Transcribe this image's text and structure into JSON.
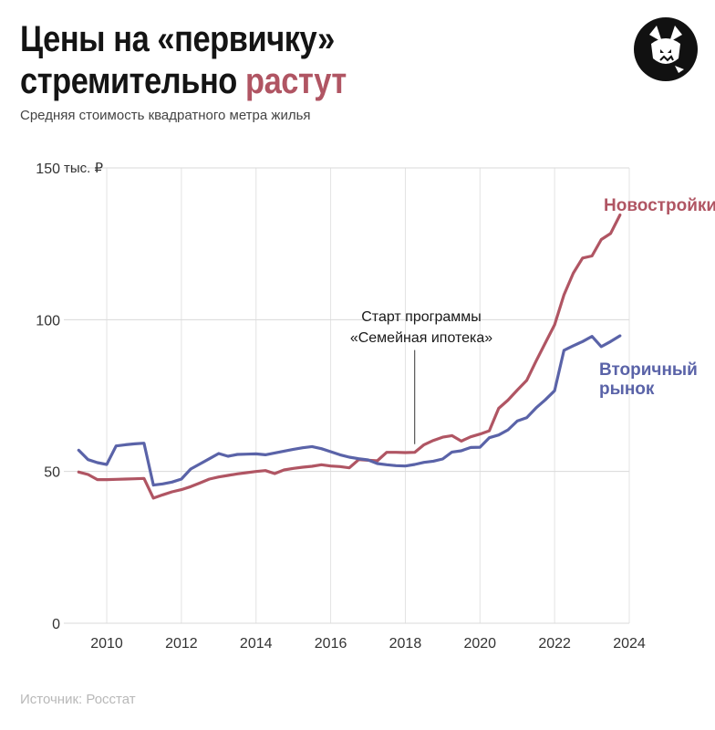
{
  "header": {
    "title_line1": "Цены на «первичку»",
    "title_line2_prefix": "стремительно ",
    "title_line2_accent": "растут",
    "subtitle": "Средняя стоимость квадратного метра жилья"
  },
  "footer": {
    "source": "Источник: Росстат"
  },
  "logo": {
    "icon": "fox-head-icon"
  },
  "colors": {
    "new": "#b05563",
    "secondary": "#5a63a8",
    "accent": "#b05563",
    "grid": "#d9d9d9"
  },
  "chart_data": {
    "type": "line",
    "title": "",
    "xlabel": "",
    "ylabel": "",
    "y_unit": "тыс. ₽",
    "xlim": [
      2008.9,
      2024.0
    ],
    "ylim": [
      0,
      150
    ],
    "y_ticks": [
      "0",
      "50",
      "100",
      "150"
    ],
    "x_ticks": [
      "2010",
      "2012",
      "2014",
      "2016",
      "2018",
      "2020",
      "2022",
      "2024"
    ],
    "grid": "horizontal",
    "legend": "inline labels at line ends",
    "series": [
      {
        "name": "Новостройки",
        "color": "#b05563",
        "points": [
          [
            2009.25,
            49.8
          ],
          [
            2009.5,
            49.0
          ],
          [
            2009.75,
            47.3
          ],
          [
            2010.0,
            47.3
          ],
          [
            2010.25,
            47.4
          ],
          [
            2010.5,
            47.5
          ],
          [
            2010.75,
            47.6
          ],
          [
            2011.0,
            47.7
          ],
          [
            2011.25,
            41.2
          ],
          [
            2011.5,
            42.3
          ],
          [
            2011.75,
            43.3
          ],
          [
            2012.0,
            44.0
          ],
          [
            2012.25,
            45.0
          ],
          [
            2012.5,
            46.2
          ],
          [
            2012.75,
            47.5
          ],
          [
            2013.0,
            48.2
          ],
          [
            2013.25,
            48.7
          ],
          [
            2013.5,
            49.2
          ],
          [
            2013.75,
            49.6
          ],
          [
            2014.0,
            50.0
          ],
          [
            2014.25,
            50.3
          ],
          [
            2014.5,
            49.3
          ],
          [
            2014.75,
            50.5
          ],
          [
            2015.0,
            51.0
          ],
          [
            2015.25,
            51.4
          ],
          [
            2015.5,
            51.7
          ],
          [
            2015.75,
            52.2
          ],
          [
            2016.0,
            51.8
          ],
          [
            2016.25,
            51.6
          ],
          [
            2016.5,
            51.2
          ],
          [
            2016.75,
            53.9
          ],
          [
            2017.0,
            53.7
          ],
          [
            2017.25,
            53.5
          ],
          [
            2017.5,
            56.3
          ],
          [
            2017.75,
            56.3
          ],
          [
            2018.0,
            56.2
          ],
          [
            2018.25,
            56.3
          ],
          [
            2018.5,
            58.8
          ],
          [
            2018.75,
            60.2
          ],
          [
            2019.0,
            61.3
          ],
          [
            2019.25,
            61.8
          ],
          [
            2019.5,
            60.0
          ],
          [
            2019.75,
            61.4
          ],
          [
            2020.0,
            62.3
          ],
          [
            2020.25,
            63.4
          ],
          [
            2020.5,
            70.8
          ],
          [
            2020.75,
            73.5
          ],
          [
            2021.0,
            76.8
          ],
          [
            2021.25,
            80.0
          ],
          [
            2021.5,
            86.3
          ],
          [
            2021.75,
            92.3
          ],
          [
            2022.0,
            98.3
          ],
          [
            2022.25,
            108.2
          ],
          [
            2022.5,
            115.3
          ],
          [
            2022.75,
            120.3
          ],
          [
            2023.0,
            121.0
          ],
          [
            2023.25,
            126.4
          ],
          [
            2023.5,
            128.4
          ],
          [
            2023.75,
            134.5
          ]
        ]
      },
      {
        "name": "Вторичный рынок",
        "color": "#5a63a8",
        "points": [
          [
            2009.25,
            57.0
          ],
          [
            2009.5,
            53.9
          ],
          [
            2009.75,
            52.9
          ],
          [
            2010.0,
            52.3
          ],
          [
            2010.25,
            58.4
          ],
          [
            2010.5,
            58.8
          ],
          [
            2010.75,
            59.1
          ],
          [
            2011.0,
            59.3
          ],
          [
            2011.25,
            45.5
          ],
          [
            2011.5,
            45.9
          ],
          [
            2011.75,
            46.5
          ],
          [
            2012.0,
            47.5
          ],
          [
            2012.25,
            50.8
          ],
          [
            2012.5,
            52.5
          ],
          [
            2012.75,
            54.2
          ],
          [
            2013.0,
            55.9
          ],
          [
            2013.25,
            55.0
          ],
          [
            2013.5,
            55.6
          ],
          [
            2013.75,
            55.7
          ],
          [
            2014.0,
            55.8
          ],
          [
            2014.25,
            55.5
          ],
          [
            2014.5,
            56.1
          ],
          [
            2014.75,
            56.7
          ],
          [
            2015.0,
            57.3
          ],
          [
            2015.25,
            57.8
          ],
          [
            2015.5,
            58.2
          ],
          [
            2015.75,
            57.5
          ],
          [
            2016.0,
            56.5
          ],
          [
            2016.25,
            55.5
          ],
          [
            2016.5,
            54.7
          ],
          [
            2016.75,
            54.2
          ],
          [
            2017.0,
            53.8
          ],
          [
            2017.25,
            52.6
          ],
          [
            2017.5,
            52.2
          ],
          [
            2017.75,
            51.9
          ],
          [
            2018.0,
            51.8
          ],
          [
            2018.25,
            52.3
          ],
          [
            2018.5,
            53.0
          ],
          [
            2018.75,
            53.4
          ],
          [
            2019.0,
            54.1
          ],
          [
            2019.25,
            56.4
          ],
          [
            2019.5,
            56.8
          ],
          [
            2019.75,
            57.9
          ],
          [
            2020.0,
            58.0
          ],
          [
            2020.25,
            61.1
          ],
          [
            2020.5,
            62.0
          ],
          [
            2020.75,
            63.7
          ],
          [
            2021.0,
            66.6
          ],
          [
            2021.25,
            67.7
          ],
          [
            2021.5,
            70.9
          ],
          [
            2021.75,
            73.6
          ],
          [
            2022.0,
            76.6
          ],
          [
            2022.25,
            89.9
          ],
          [
            2022.5,
            91.4
          ],
          [
            2022.75,
            92.8
          ],
          [
            2023.0,
            94.5
          ],
          [
            2023.25,
            91.1
          ],
          [
            2023.5,
            92.8
          ],
          [
            2023.75,
            94.7
          ]
        ]
      }
    ],
    "labels": {
      "new_line1": "Новостройки",
      "secondary_line1": "Вторичный",
      "secondary_line2": "рынок"
    },
    "annotation": {
      "line1": "Старт программы",
      "line2": "«Семейная ипотека»",
      "x": 2018.25,
      "y_from": 59.0,
      "y_to": 90.0
    }
  }
}
